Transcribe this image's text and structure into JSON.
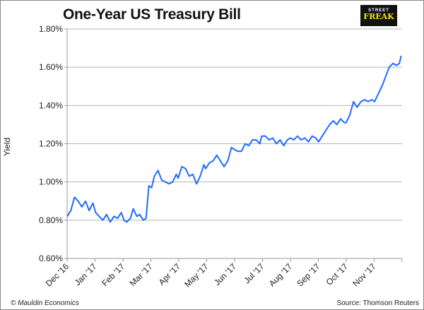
{
  "footer": {
    "copyright": "© Mauldin Economics",
    "source": "Source: Thomson Reuters"
  },
  "logo": {
    "line1": "STREET",
    "line2": "FREAK"
  },
  "chart_data": {
    "type": "line",
    "title": "One-Year US Treasury Bill",
    "xlabel": "",
    "ylabel": "Yield",
    "xlim": [
      "2016-12-01",
      "2017-12-01"
    ],
    "ylim": [
      0.6,
      1.8
    ],
    "yticks": [
      0.6,
      0.8,
      1.0,
      1.2,
      1.4,
      1.6,
      1.8
    ],
    "ytick_labels": [
      "0.60%",
      "0.80%",
      "1.00%",
      "1.20%",
      "1.40%",
      "1.60%",
      "1.80%"
    ],
    "xtick_labels": [
      "Dec '16",
      "Jan '17",
      "Feb '17",
      "Mar '17",
      "Apr '17",
      "May '17",
      "Jun '17",
      "Jul '17",
      "Aug '17",
      "Sep '17",
      "Oct '17",
      "Nov '17"
    ],
    "grid": true,
    "line_color": "#1f6bff",
    "series": [
      {
        "points": [
          [
            "2016-12-01",
            0.82
          ],
          [
            "2016-12-05",
            0.85
          ],
          [
            "2016-12-09",
            0.92
          ],
          [
            "2016-12-13",
            0.9
          ],
          [
            "2016-12-17",
            0.87
          ],
          [
            "2016-12-21",
            0.9
          ],
          [
            "2016-12-25",
            0.85
          ],
          [
            "2016-12-29",
            0.89
          ],
          [
            "2017-01-01",
            0.84
          ],
          [
            "2017-01-05",
            0.82
          ],
          [
            "2017-01-09",
            0.8
          ],
          [
            "2017-01-13",
            0.83
          ],
          [
            "2017-01-17",
            0.79
          ],
          [
            "2017-01-21",
            0.82
          ],
          [
            "2017-01-25",
            0.81
          ],
          [
            "2017-01-29",
            0.84
          ],
          [
            "2017-02-01",
            0.8
          ],
          [
            "2017-02-04",
            0.79
          ],
          [
            "2017-02-08",
            0.81
          ],
          [
            "2017-02-11",
            0.86
          ],
          [
            "2017-02-15",
            0.82
          ],
          [
            "2017-02-18",
            0.83
          ],
          [
            "2017-02-22",
            0.8
          ],
          [
            "2017-02-25",
            0.81
          ],
          [
            "2017-02-28",
            0.98
          ],
          [
            "2017-03-03",
            0.97
          ],
          [
            "2017-03-06",
            1.03
          ],
          [
            "2017-03-10",
            1.06
          ],
          [
            "2017-03-14",
            1.01
          ],
          [
            "2017-03-18",
            1.0
          ],
          [
            "2017-03-22",
            0.99
          ],
          [
            "2017-03-26",
            1.0
          ],
          [
            "2017-03-30",
            1.04
          ],
          [
            "2017-04-01",
            1.02
          ],
          [
            "2017-04-05",
            1.08
          ],
          [
            "2017-04-09",
            1.07
          ],
          [
            "2017-04-13",
            1.03
          ],
          [
            "2017-04-17",
            1.04
          ],
          [
            "2017-04-21",
            0.99
          ],
          [
            "2017-04-25",
            1.03
          ],
          [
            "2017-04-29",
            1.09
          ],
          [
            "2017-05-01",
            1.07
          ],
          [
            "2017-05-05",
            1.1
          ],
          [
            "2017-05-09",
            1.11
          ],
          [
            "2017-05-13",
            1.14
          ],
          [
            "2017-05-17",
            1.11
          ],
          [
            "2017-05-21",
            1.08
          ],
          [
            "2017-05-25",
            1.11
          ],
          [
            "2017-05-29",
            1.18
          ],
          [
            "2017-06-01",
            1.17
          ],
          [
            "2017-06-05",
            1.16
          ],
          [
            "2017-06-09",
            1.16
          ],
          [
            "2017-06-13",
            1.2
          ],
          [
            "2017-06-17",
            1.19
          ],
          [
            "2017-06-21",
            1.22
          ],
          [
            "2017-06-25",
            1.22
          ],
          [
            "2017-06-29",
            1.2
          ],
          [
            "2017-07-01",
            1.24
          ],
          [
            "2017-07-05",
            1.24
          ],
          [
            "2017-07-09",
            1.22
          ],
          [
            "2017-07-13",
            1.23
          ],
          [
            "2017-07-17",
            1.2
          ],
          [
            "2017-07-21",
            1.22
          ],
          [
            "2017-07-25",
            1.19
          ],
          [
            "2017-07-29",
            1.22
          ],
          [
            "2017-08-01",
            1.23
          ],
          [
            "2017-08-05",
            1.22
          ],
          [
            "2017-08-09",
            1.24
          ],
          [
            "2017-08-13",
            1.22
          ],
          [
            "2017-08-17",
            1.23
          ],
          [
            "2017-08-21",
            1.21
          ],
          [
            "2017-08-25",
            1.24
          ],
          [
            "2017-08-29",
            1.23
          ],
          [
            "2017-09-01",
            1.21
          ],
          [
            "2017-09-05",
            1.24
          ],
          [
            "2017-09-09",
            1.27
          ],
          [
            "2017-09-13",
            1.3
          ],
          [
            "2017-09-17",
            1.32
          ],
          [
            "2017-09-21",
            1.3
          ],
          [
            "2017-09-25",
            1.33
          ],
          [
            "2017-09-29",
            1.31
          ],
          [
            "2017-10-01",
            1.31
          ],
          [
            "2017-10-05",
            1.35
          ],
          [
            "2017-10-09",
            1.42
          ],
          [
            "2017-10-13",
            1.39
          ],
          [
            "2017-10-17",
            1.42
          ],
          [
            "2017-10-21",
            1.43
          ],
          [
            "2017-10-25",
            1.42
          ],
          [
            "2017-10-29",
            1.43
          ],
          [
            "2017-11-01",
            1.42
          ],
          [
            "2017-11-05",
            1.46
          ],
          [
            "2017-11-09",
            1.5
          ],
          [
            "2017-11-13",
            1.55
          ],
          [
            "2017-11-17",
            1.6
          ],
          [
            "2017-11-21",
            1.62
          ],
          [
            "2017-11-25",
            1.61
          ],
          [
            "2017-11-28",
            1.62
          ],
          [
            "2017-11-30",
            1.66
          ]
        ]
      }
    ]
  }
}
